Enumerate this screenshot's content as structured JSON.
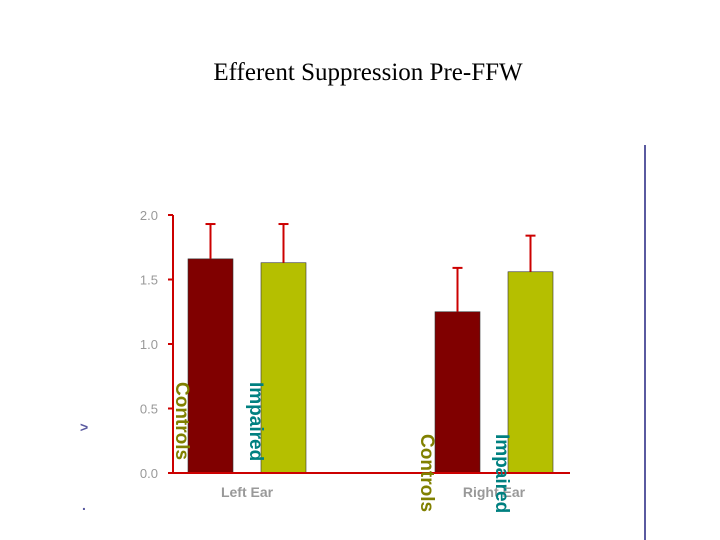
{
  "chart_data": {
    "type": "bar",
    "title": "Efferent Suppression Pre-FFW",
    "categories": [
      "Left Ear",
      "Right Ear"
    ],
    "series": [
      {
        "name": "Controls",
        "values": [
          1.66,
          1.25
        ],
        "error_upper": [
          1.93,
          1.59
        ],
        "color": "#800000",
        "label_color": "#808000"
      },
      {
        "name": "Impaired",
        "values": [
          1.63,
          1.56
        ],
        "error_upper": [
          1.93,
          1.84
        ],
        "color": "#b5bf00",
        "label_color": "#008080"
      }
    ],
    "y_ticks": [
      "0.0",
      "0.5",
      "1.0",
      "1.5",
      "2.0"
    ],
    "ylim": [
      0,
      2.0
    ],
    "error_bar_color": "#cc0000",
    "axis_color": "#cc0000"
  },
  "edge_glyphs": [
    ">",
    "."
  ]
}
